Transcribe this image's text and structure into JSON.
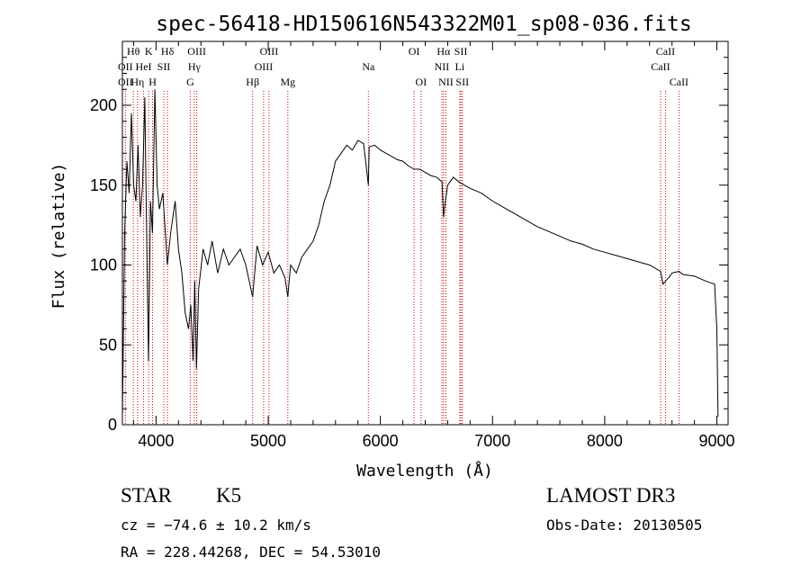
{
  "chart_data": {
    "type": "line",
    "title": "spec-56418-HD150616N543322M01_sp08-036.fits",
    "xlabel": "Wavelength (Å)",
    "ylabel": "Flux (relative)",
    "xlim": [
      3700,
      9100
    ],
    "ylim": [
      0,
      240
    ],
    "x_ticks": [
      4000,
      5000,
      6000,
      7000,
      8000,
      9000
    ],
    "y_ticks": [
      0,
      50,
      100,
      150,
      200
    ],
    "series": [
      {
        "name": "spectrum",
        "x": [
          3700,
          3720,
          3740,
          3760,
          3780,
          3800,
          3820,
          3840,
          3860,
          3880,
          3900,
          3920,
          3933,
          3950,
          3968,
          3990,
          4010,
          4030,
          4060,
          4101,
          4130,
          4170,
          4200,
          4230,
          4260,
          4290,
          4310,
          4330,
          4345,
          4360,
          4380,
          4420,
          4460,
          4500,
          4550,
          4600,
          4650,
          4700,
          4750,
          4800,
          4861,
          4900,
          4950,
          5000,
          5050,
          5100,
          5150,
          5175,
          5200,
          5250,
          5300,
          5350,
          5400,
          5450,
          5500,
          5550,
          5600,
          5650,
          5700,
          5750,
          5800,
          5850,
          5893,
          5900,
          5950,
          6000,
          6050,
          6100,
          6150,
          6200,
          6250,
          6300,
          6350,
          6400,
          6450,
          6500,
          6550,
          6563,
          6580,
          6600,
          6650,
          6700,
          6750,
          6800,
          6900,
          7000,
          7100,
          7200,
          7300,
          7400,
          7500,
          7600,
          7700,
          7800,
          7900,
          8000,
          8100,
          8200,
          8300,
          8400,
          8498,
          8520,
          8542,
          8570,
          8600,
          8662,
          8700,
          8800,
          8900,
          8980,
          9000,
          9010
        ],
        "values": [
          5,
          120,
          165,
          145,
          195,
          150,
          140,
          175,
          130,
          150,
          205,
          100,
          40,
          140,
          120,
          210,
          150,
          135,
          145,
          100,
          120,
          140,
          110,
          95,
          70,
          60,
          75,
          40,
          90,
          35,
          85,
          110,
          100,
          115,
          95,
          110,
          100,
          105,
          110,
          100,
          80,
          112,
          100,
          108,
          95,
          100,
          92,
          80,
          100,
          95,
          105,
          110,
          115,
          125,
          140,
          150,
          165,
          170,
          175,
          172,
          178,
          176,
          150,
          174,
          175,
          172,
          170,
          168,
          166,
          165,
          162,
          160,
          160,
          158,
          156,
          155,
          152,
          130,
          140,
          150,
          155,
          152,
          150,
          148,
          145,
          140,
          136,
          132,
          128,
          124,
          121,
          118,
          115,
          113,
          110,
          108,
          106,
          104,
          102,
          100,
          96,
          88,
          90,
          92,
          95,
          96,
          94,
          93,
          90,
          88,
          60,
          5
        ]
      }
    ],
    "line_labels": [
      {
        "name": "Hθ",
        "x": 3798,
        "row": 1
      },
      {
        "name": "OII",
        "x": 3727,
        "row": 2
      },
      {
        "name": "OII",
        "x": 3727,
        "row": 3
      },
      {
        "name": "K",
        "x": 3934,
        "row": 1
      },
      {
        "name": "HeI",
        "x": 3889,
        "row": 2
      },
      {
        "name": "Hη",
        "x": 3835,
        "row": 3
      },
      {
        "name": "SII",
        "x": 4069,
        "row": 2
      },
      {
        "name": "H",
        "x": 3969,
        "row": 3
      },
      {
        "name": "Hδ",
        "x": 4102,
        "row": 1
      },
      {
        "name": "OIII",
        "x": 4363,
        "row": 1
      },
      {
        "name": "Hγ",
        "x": 4341,
        "row": 2
      },
      {
        "name": "G",
        "x": 4305,
        "row": 3
      },
      {
        "name": "OIII",
        "x": 5007,
        "row": 1
      },
      {
        "name": "OIII",
        "x": 4959,
        "row": 2
      },
      {
        "name": "Hβ",
        "x": 4861,
        "row": 3
      },
      {
        "name": "Mg",
        "x": 5175,
        "row": 3
      },
      {
        "name": "Na",
        "x": 5893,
        "row": 2
      },
      {
        "name": "OI",
        "x": 6300,
        "row": 1
      },
      {
        "name": "OI",
        "x": 6363,
        "row": 3
      },
      {
        "name": "Hα",
        "x": 6563,
        "row": 1
      },
      {
        "name": "NII",
        "x": 6548,
        "row": 2
      },
      {
        "name": "NII",
        "x": 6584,
        "row": 3
      },
      {
        "name": "SII",
        "x": 6717,
        "row": 1
      },
      {
        "name": "Li",
        "x": 6708,
        "row": 2
      },
      {
        "name": "SII",
        "x": 6731,
        "row": 3
      },
      {
        "name": "CaII",
        "x": 8542,
        "row": 1
      },
      {
        "name": "CaII",
        "x": 8498,
        "row": 2
      },
      {
        "name": "CaII",
        "x": 8662,
        "row": 3
      }
    ]
  },
  "info": {
    "object_class": "STAR",
    "subclass": "K5",
    "survey": "LAMOST DR3",
    "redshift_line": "cz = −74.6 ± 10.2 km/s",
    "obs_date_line": "Obs-Date: 20130505",
    "coords_line": "RA = 228.44268, DEC =  54.53010"
  }
}
